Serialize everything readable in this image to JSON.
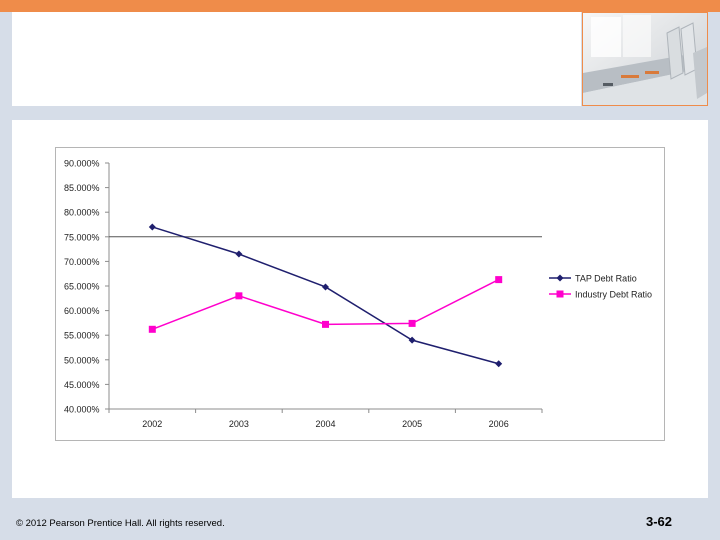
{
  "colors": {
    "accent_orange": "#ef8c4a",
    "background": "#d6dde8",
    "series_tap": "#1f1f6e",
    "series_industry": "#ff00cc"
  },
  "footer": {
    "copyright": "© 2012 Pearson Prentice Hall. All rights reserved.",
    "slide_number": "3-62"
  },
  "chart_data": {
    "type": "line",
    "title": "",
    "xlabel": "",
    "ylabel": "",
    "categories": [
      "2002",
      "2003",
      "2004",
      "2005",
      "2006"
    ],
    "y_tick_labels": [
      "90.000%",
      "85.000%",
      "80.000%",
      "75.000%",
      "70.000%",
      "65.000%",
      "60.000%",
      "55.000%",
      "50.000%",
      "45.000%",
      "40.000%"
    ],
    "ylim": [
      40,
      90
    ],
    "y_unit": "%",
    "grid": false,
    "legend_position": "right",
    "series": [
      {
        "name": "TAP Debt Ratio",
        "values": [
          77.0,
          71.5,
          64.8,
          54.0,
          49.2
        ],
        "color": "#1f1f6e",
        "marker": "diamond"
      },
      {
        "name": "Industry Debt Ratio",
        "values": [
          56.2,
          63.0,
          57.2,
          57.4,
          66.3
        ],
        "color": "#ff00cc",
        "marker": "square"
      }
    ]
  }
}
